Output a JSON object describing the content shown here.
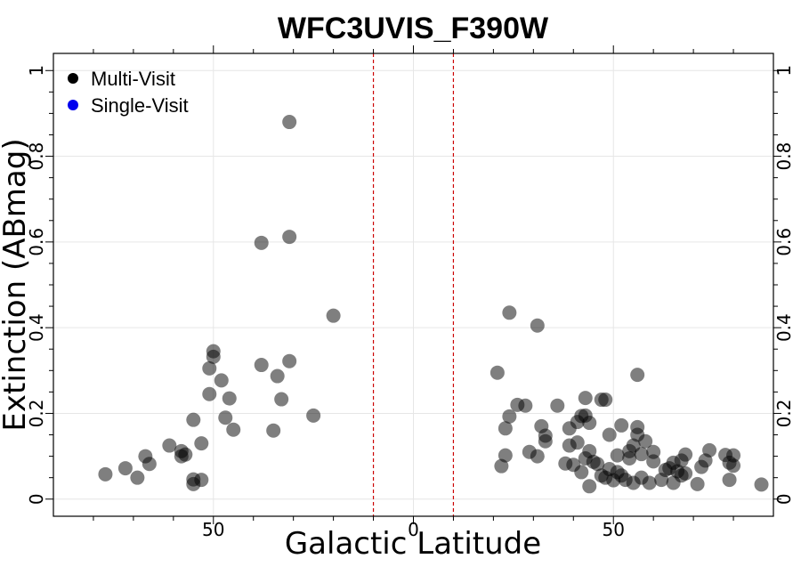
{
  "chart_data": {
    "type": "scatter",
    "title": "WFC3UVIS_F390W",
    "xlabel": "Galactic Latitude",
    "ylabel": "Extinction (ABmag)",
    "xlim": [
      -90,
      90
    ],
    "ylim": [
      -0.04,
      1.04
    ],
    "x_ticks": [
      {
        "value": -50,
        "label": "50"
      },
      {
        "value": 0,
        "label": "0"
      },
      {
        "value": 50,
        "label": "50"
      }
    ],
    "y_ticks": [
      {
        "value": 0,
        "label": "0"
      },
      {
        "value": 0.2,
        "label": "0.2"
      },
      {
        "value": 0.4,
        "label": "0.4"
      },
      {
        "value": 0.6,
        "label": "0.6"
      },
      {
        "value": 0.8,
        "label": "0.8"
      },
      {
        "value": 1,
        "label": "1"
      }
    ],
    "grid": true,
    "reference_lines_x": [
      -10,
      10
    ],
    "reference_line_color": "#cc0000",
    "legend": {
      "position": "top-left",
      "entries": [
        {
          "label": "Multi-Visit",
          "color": "#000000"
        },
        {
          "label": "Single-Visit",
          "color": "#0000ee"
        }
      ]
    },
    "series": [
      {
        "name": "Multi-Visit",
        "color": "#000000",
        "points": [
          [
            -77,
            0.058
          ],
          [
            -72,
            0.072
          ],
          [
            -69,
            0.05
          ],
          [
            -67,
            0.1
          ],
          [
            -66,
            0.082
          ],
          [
            -61,
            0.125
          ],
          [
            -58,
            0.112
          ],
          [
            -58,
            0.1
          ],
          [
            -57,
            0.104
          ],
          [
            -55,
            0.046
          ],
          [
            -55,
            0.185
          ],
          [
            -55,
            0.035
          ],
          [
            -53,
            0.045
          ],
          [
            -53,
            0.13
          ],
          [
            -51,
            0.305
          ],
          [
            -51,
            0.245
          ],
          [
            -50,
            0.332
          ],
          [
            -50,
            0.345
          ],
          [
            -48,
            0.277
          ],
          [
            -47,
            0.19
          ],
          [
            -46,
            0.235
          ],
          [
            -45,
            0.162
          ],
          [
            -38,
            0.598
          ],
          [
            -38,
            0.313
          ],
          [
            -35,
            0.16
          ],
          [
            -34,
            0.287
          ],
          [
            -33,
            0.233
          ],
          [
            -31,
            0.88
          ],
          [
            -31,
            0.612
          ],
          [
            -31,
            0.322
          ],
          [
            -25,
            0.195
          ],
          [
            -20,
            0.428
          ],
          [
            21,
            0.295
          ],
          [
            22,
            0.077
          ],
          [
            23,
            0.102
          ],
          [
            23,
            0.165
          ],
          [
            24,
            0.435
          ],
          [
            24,
            0.193
          ],
          [
            26,
            0.22
          ],
          [
            28,
            0.218
          ],
          [
            29,
            0.11
          ],
          [
            31,
            0.405
          ],
          [
            31,
            0.1
          ],
          [
            32,
            0.17
          ],
          [
            33,
            0.135
          ],
          [
            33,
            0.148
          ],
          [
            36,
            0.218
          ],
          [
            38,
            0.083
          ],
          [
            39,
            0.125
          ],
          [
            39,
            0.165
          ],
          [
            40,
            0.08
          ],
          [
            41,
            0.132
          ],
          [
            41,
            0.18
          ],
          [
            42,
            0.063
          ],
          [
            42,
            0.194
          ],
          [
            43,
            0.236
          ],
          [
            43,
            0.195
          ],
          [
            43,
            0.095
          ],
          [
            44,
            0.03
          ],
          [
            44,
            0.112
          ],
          [
            44,
            0.178
          ],
          [
            45,
            0.087
          ],
          [
            46,
            0.082
          ],
          [
            47,
            0.232
          ],
          [
            47,
            0.055
          ],
          [
            48,
            0.232
          ],
          [
            48,
            0.05
          ],
          [
            49,
            0.15
          ],
          [
            49,
            0.07
          ],
          [
            50,
            0.044
          ],
          [
            51,
            0.063
          ],
          [
            51,
            0.102
          ],
          [
            52,
            0.172
          ],
          [
            52,
            0.055
          ],
          [
            53,
            0.045
          ],
          [
            54,
            0.112
          ],
          [
            54,
            0.095
          ],
          [
            55,
            0.038
          ],
          [
            55,
            0.125
          ],
          [
            56,
            0.15
          ],
          [
            56,
            0.29
          ],
          [
            56,
            0.168
          ],
          [
            57,
            0.105
          ],
          [
            57,
            0.05
          ],
          [
            58,
            0.135
          ],
          [
            59,
            0.038
          ],
          [
            60,
            0.088
          ],
          [
            60,
            0.11
          ],
          [
            62,
            0.045
          ],
          [
            63,
            0.068
          ],
          [
            64,
            0.072
          ],
          [
            65,
            0.085
          ],
          [
            65,
            0.038
          ],
          [
            66,
            0.065
          ],
          [
            67,
            0.055
          ],
          [
            67,
            0.09
          ],
          [
            68,
            0.06
          ],
          [
            68,
            0.104
          ],
          [
            71,
            0.035
          ],
          [
            72,
            0.075
          ],
          [
            73,
            0.09
          ],
          [
            74,
            0.114
          ],
          [
            78,
            0.103
          ],
          [
            79,
            0.045
          ],
          [
            79,
            0.085
          ],
          [
            80,
            0.078
          ],
          [
            80,
            0.102
          ],
          [
            87,
            0.034
          ]
        ]
      },
      {
        "name": "Single-Visit",
        "color": "#0000ee",
        "points": []
      }
    ]
  }
}
